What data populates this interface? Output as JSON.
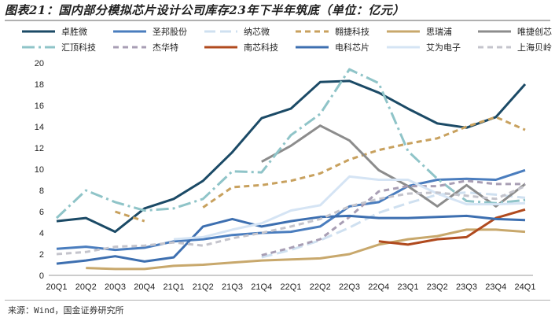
{
  "title": "图表21：国内部分模拟芯片设计公司库存23年下半年筑底（单位：亿元）",
  "source": "来源：Wind，国金证券研究所",
  "chart_data": {
    "type": "line",
    "ylim": [
      0,
      20
    ],
    "yticks": [
      0,
      2,
      4,
      6,
      8,
      10,
      12,
      14,
      16,
      18,
      20
    ],
    "grid": false,
    "legend_position": "top",
    "categories": [
      "20Q1",
      "20Q2",
      "20Q3",
      "20Q4",
      "21Q1",
      "21Q2",
      "21Q3",
      "21Q4",
      "22Q1",
      "22Q2",
      "22Q3",
      "22Q4",
      "23Q1",
      "23Q2",
      "23Q3",
      "23Q4",
      "24Q1"
    ],
    "series": [
      {
        "name": "卓胜微",
        "color": "#1b4a66",
        "dash": "solid",
        "width": 3,
        "values": [
          5.1,
          5.4,
          4.1,
          6.3,
          7.2,
          8.9,
          11.6,
          14.8,
          15.7,
          18.2,
          18.3,
          17.2,
          15.7,
          14.3,
          13.9,
          14.9,
          18.0
        ]
      },
      {
        "name": "圣邦股份",
        "color": "#4a7dbe",
        "dash": "solid",
        "width": 3,
        "values": [
          2.5,
          2.7,
          2.4,
          2.6,
          3.2,
          3.4,
          3.8,
          4.0,
          4.1,
          4.6,
          6.5,
          6.9,
          8.4,
          9.0,
          9.1,
          9.0,
          9.9
        ]
      },
      {
        "name": "纳芯微",
        "color": "#cfe0f0",
        "dash": "longdash",
        "width": 3,
        "values": [
          null,
          null,
          null,
          null,
          null,
          null,
          null,
          1.7,
          2.4,
          3.3,
          4.5,
          5.9,
          6.8,
          7.6,
          7.8,
          7.6,
          7.3
        ]
      },
      {
        "name": "翱捷科技",
        "color": "#c8a15e",
        "dash": "dash",
        "width": 3,
        "values": [
          null,
          null,
          6.0,
          5.1,
          null,
          6.4,
          8.3,
          8.5,
          8.9,
          9.6,
          10.9,
          11.8,
          12.4,
          12.9,
          14.0,
          14.9,
          13.7
        ]
      },
      {
        "name": "思瑞浦",
        "color": "#c8a86c",
        "dash": "solid",
        "width": 3,
        "values": [
          null,
          0.7,
          0.6,
          0.6,
          0.9,
          1.0,
          1.2,
          1.4,
          1.5,
          1.6,
          2.0,
          2.9,
          3.4,
          3.7,
          4.3,
          4.3,
          4.1
        ]
      },
      {
        "name": "唯捷创芯",
        "color": "#8c8c8c",
        "dash": "solid",
        "width": 3,
        "values": [
          null,
          null,
          null,
          null,
          null,
          null,
          null,
          10.7,
          12.2,
          14.1,
          12.7,
          9.9,
          8.4,
          6.5,
          8.5,
          6.5,
          8.6
        ]
      },
      {
        "name": "汇顶科技",
        "color": "#8fc4c8",
        "dash": "dashdot",
        "width": 3,
        "values": [
          5.4,
          8.0,
          6.9,
          6.1,
          6.3,
          7.2,
          9.8,
          9.7,
          13.2,
          15.2,
          19.4,
          18.1,
          11.7,
          9.1,
          7.0,
          6.8,
          7.1
        ]
      },
      {
        "name": "杰华特",
        "color": "#a89eb4",
        "dash": "dash",
        "width": 3,
        "values": [
          null,
          null,
          null,
          null,
          null,
          null,
          null,
          1.9,
          2.6,
          3.4,
          5.5,
          7.9,
          8.4,
          8.4,
          8.9,
          8.6,
          8.6
        ]
      },
      {
        "name": "南芯科技",
        "color": "#b04a1e",
        "dash": "solid",
        "width": 3,
        "values": [
          null,
          null,
          null,
          null,
          null,
          null,
          null,
          null,
          null,
          null,
          null,
          3.2,
          2.9,
          3.4,
          3.6,
          5.4,
          6.2
        ]
      },
      {
        "name": "电科芯片",
        "color": "#3d6fb0",
        "dash": "solid",
        "width": 3,
        "values": [
          1.1,
          1.4,
          1.8,
          1.3,
          1.7,
          4.6,
          5.3,
          4.6,
          5.1,
          5.5,
          5.6,
          5.4,
          5.4,
          5.5,
          5.6,
          5.3,
          5.2
        ]
      },
      {
        "name": "艾为电子",
        "color": "#d5e4f4",
        "dash": "solid",
        "width": 3,
        "values": [
          null,
          null,
          null,
          null,
          3.4,
          3.6,
          4.3,
          4.9,
          6.1,
          6.6,
          9.3,
          9.0,
          9.0,
          7.7,
          6.7,
          6.7,
          6.8
        ]
      },
      {
        "name": "上海贝岭",
        "color": "#c4c4cc",
        "dash": "dash",
        "width": 3,
        "values": [
          2.0,
          2.2,
          2.7,
          2.8,
          3.1,
          2.8,
          3.5,
          4.0,
          4.6,
          5.3,
          6.5,
          7.2,
          7.7,
          7.8,
          7.5,
          7.2,
          8.4
        ]
      }
    ]
  }
}
